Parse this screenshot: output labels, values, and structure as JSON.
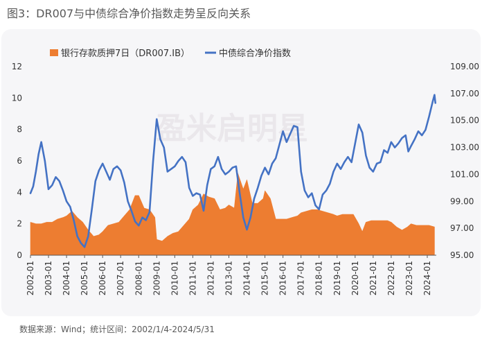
{
  "figure_title": "图3：DR007与中债综合净价指数走势呈反向关系",
  "source_note": "数据来源：Wind；统计区间：2002/1/4-2024/5/31",
  "watermark": "盈米启明星",
  "colors": {
    "bar_series": "#ED7D31",
    "line_series": "#4472C4"
  },
  "chart_data": {
    "type": "area+line",
    "x_tick_labels": [
      "2002-01",
      "2003-01",
      "2004-01",
      "2005-01",
      "2006-01",
      "2007-01",
      "2008-01",
      "2009-01",
      "2010-01",
      "2011-01",
      "2012-01",
      "2013-01",
      "2014-01",
      "2015-01",
      "2016-01",
      "2017-01",
      "2018-01",
      "2019-01",
      "2020-01",
      "2021-01",
      "2022-01",
      "2023-01",
      "2024-01"
    ],
    "y_left_ticks": [
      0,
      2,
      4,
      6,
      8,
      10,
      12
    ],
    "y_left_labels": [
      "0",
      "2",
      "4",
      "6",
      "8",
      "10",
      "12"
    ],
    "y_left_range": [
      0,
      12
    ],
    "y_right_ticks": [
      95,
      97,
      99,
      101,
      103,
      105,
      107,
      109
    ],
    "y_right_labels": [
      "95.00",
      "97.00",
      "99.00",
      "101.00",
      "103.00",
      "105.00",
      "107.00",
      "109.00"
    ],
    "y_right_range": [
      95,
      109
    ],
    "x_range": [
      2002.0,
      2024.5
    ],
    "legend_position": "top-left",
    "series": [
      {
        "name": "银行存款质押7日（DR007.IB）",
        "axis": "left",
        "style": "filled-area",
        "points": [
          [
            2002.0,
            2.1
          ],
          [
            2002.3,
            2.0
          ],
          [
            2002.6,
            2.0
          ],
          [
            2002.9,
            2.1
          ],
          [
            2003.2,
            2.1
          ],
          [
            2003.5,
            2.3
          ],
          [
            2003.8,
            2.4
          ],
          [
            2004.0,
            2.5
          ],
          [
            2004.3,
            2.8
          ],
          [
            2004.6,
            2.4
          ],
          [
            2004.9,
            2.1
          ],
          [
            2005.2,
            1.6
          ],
          [
            2005.5,
            1.2
          ],
          [
            2005.8,
            1.3
          ],
          [
            2006.0,
            1.5
          ],
          [
            2006.3,
            1.9
          ],
          [
            2006.6,
            2.0
          ],
          [
            2006.9,
            2.1
          ],
          [
            2007.2,
            2.5
          ],
          [
            2007.5,
            2.9
          ],
          [
            2007.8,
            3.8
          ],
          [
            2008.0,
            3.8
          ],
          [
            2008.3,
            3.0
          ],
          [
            2008.6,
            2.9
          ],
          [
            2008.9,
            2.4
          ],
          [
            2009.0,
            1.0
          ],
          [
            2009.3,
            0.9
          ],
          [
            2009.6,
            1.2
          ],
          [
            2009.9,
            1.4
          ],
          [
            2010.2,
            1.5
          ],
          [
            2010.5,
            1.9
          ],
          [
            2010.8,
            2.3
          ],
          [
            2011.0,
            2.9
          ],
          [
            2011.3,
            3.2
          ],
          [
            2011.6,
            3.9
          ],
          [
            2011.9,
            3.7
          ],
          [
            2012.2,
            3.6
          ],
          [
            2012.5,
            2.9
          ],
          [
            2012.8,
            3.0
          ],
          [
            2013.0,
            3.2
          ],
          [
            2013.3,
            3.0
          ],
          [
            2013.5,
            5.2
          ],
          [
            2013.8,
            4.2
          ],
          [
            2014.0,
            4.8
          ],
          [
            2014.3,
            3.3
          ],
          [
            2014.6,
            3.3
          ],
          [
            2014.9,
            3.6
          ],
          [
            2015.0,
            4.1
          ],
          [
            2015.3,
            3.6
          ],
          [
            2015.6,
            2.3
          ],
          [
            2015.9,
            2.3
          ],
          [
            2016.2,
            2.3
          ],
          [
            2016.5,
            2.4
          ],
          [
            2016.8,
            2.5
          ],
          [
            2017.0,
            2.7
          ],
          [
            2017.3,
            2.8
          ],
          [
            2017.6,
            2.9
          ],
          [
            2017.9,
            2.9
          ],
          [
            2018.2,
            2.8
          ],
          [
            2018.5,
            2.7
          ],
          [
            2018.8,
            2.6
          ],
          [
            2019.0,
            2.5
          ],
          [
            2019.3,
            2.6
          ],
          [
            2019.6,
            2.6
          ],
          [
            2019.9,
            2.6
          ],
          [
            2020.2,
            2.0
          ],
          [
            2020.4,
            1.5
          ],
          [
            2020.6,
            2.1
          ],
          [
            2020.9,
            2.2
          ],
          [
            2021.2,
            2.2
          ],
          [
            2021.5,
            2.2
          ],
          [
            2021.8,
            2.2
          ],
          [
            2022.0,
            2.1
          ],
          [
            2022.3,
            1.8
          ],
          [
            2022.6,
            1.6
          ],
          [
            2022.9,
            1.8
          ],
          [
            2023.1,
            2.0
          ],
          [
            2023.4,
            1.9
          ],
          [
            2023.7,
            1.9
          ],
          [
            2023.9,
            1.9
          ],
          [
            2024.1,
            1.9
          ],
          [
            2024.4,
            1.8
          ]
        ]
      },
      {
        "name": "中债综合净价指数",
        "axis": "right",
        "style": "line",
        "points": [
          [
            2002.0,
            99.6
          ],
          [
            2002.15,
            100.1
          ],
          [
            2002.3,
            101.2
          ],
          [
            2002.45,
            102.5
          ],
          [
            2002.6,
            103.4
          ],
          [
            2002.8,
            102.0
          ],
          [
            2003.0,
            99.9
          ],
          [
            2003.2,
            100.2
          ],
          [
            2003.4,
            100.8
          ],
          [
            2003.6,
            100.5
          ],
          [
            2003.8,
            99.8
          ],
          [
            2004.0,
            99.0
          ],
          [
            2004.2,
            98.6
          ],
          [
            2004.4,
            97.6
          ],
          [
            2004.6,
            96.4
          ],
          [
            2004.8,
            95.9
          ],
          [
            2005.0,
            95.6
          ],
          [
            2005.2,
            96.4
          ],
          [
            2005.4,
            98.4
          ],
          [
            2005.6,
            100.5
          ],
          [
            2005.8,
            101.3
          ],
          [
            2006.0,
            101.8
          ],
          [
            2006.2,
            101.2
          ],
          [
            2006.4,
            100.6
          ],
          [
            2006.6,
            101.4
          ],
          [
            2006.8,
            101.6
          ],
          [
            2007.0,
            101.3
          ],
          [
            2007.2,
            100.4
          ],
          [
            2007.4,
            99.0
          ],
          [
            2007.6,
            98.3
          ],
          [
            2007.8,
            97.5
          ],
          [
            2008.0,
            97.2
          ],
          [
            2008.2,
            97.8
          ],
          [
            2008.4,
            97.6
          ],
          [
            2008.6,
            98.2
          ],
          [
            2008.8,
            102.0
          ],
          [
            2009.0,
            105.1
          ],
          [
            2009.2,
            103.6
          ],
          [
            2009.4,
            103.0
          ],
          [
            2009.6,
            101.2
          ],
          [
            2009.8,
            101.4
          ],
          [
            2010.0,
            101.6
          ],
          [
            2010.2,
            102.0
          ],
          [
            2010.4,
            102.3
          ],
          [
            2010.6,
            101.9
          ],
          [
            2010.8,
            100.0
          ],
          [
            2011.0,
            99.4
          ],
          [
            2011.2,
            99.6
          ],
          [
            2011.4,
            99.5
          ],
          [
            2011.6,
            98.3
          ],
          [
            2011.8,
            100.2
          ],
          [
            2012.0,
            101.4
          ],
          [
            2012.2,
            101.6
          ],
          [
            2012.4,
            102.3
          ],
          [
            2012.6,
            101.4
          ],
          [
            2012.8,
            101.0
          ],
          [
            2013.0,
            101.2
          ],
          [
            2013.2,
            101.5
          ],
          [
            2013.4,
            101.6
          ],
          [
            2013.6,
            99.6
          ],
          [
            2013.8,
            97.8
          ],
          [
            2014.0,
            96.9
          ],
          [
            2014.2,
            97.8
          ],
          [
            2014.4,
            99.2
          ],
          [
            2014.6,
            100.0
          ],
          [
            2014.8,
            100.9
          ],
          [
            2015.0,
            101.5
          ],
          [
            2015.2,
            101.0
          ],
          [
            2015.4,
            101.8
          ],
          [
            2015.6,
            102.2
          ],
          [
            2015.8,
            103.2
          ],
          [
            2016.0,
            104.2
          ],
          [
            2016.2,
            103.4
          ],
          [
            2016.4,
            104.0
          ],
          [
            2016.6,
            104.6
          ],
          [
            2016.8,
            104.5
          ],
          [
            2017.0,
            101.2
          ],
          [
            2017.2,
            99.8
          ],
          [
            2017.4,
            99.3
          ],
          [
            2017.6,
            99.6
          ],
          [
            2017.8,
            98.7
          ],
          [
            2018.0,
            98.4
          ],
          [
            2018.2,
            99.5
          ],
          [
            2018.4,
            99.8
          ],
          [
            2018.6,
            100.3
          ],
          [
            2018.8,
            101.2
          ],
          [
            2019.0,
            101.8
          ],
          [
            2019.2,
            101.4
          ],
          [
            2019.4,
            101.9
          ],
          [
            2019.6,
            102.3
          ],
          [
            2019.8,
            101.9
          ],
          [
            2020.0,
            103.3
          ],
          [
            2020.2,
            104.7
          ],
          [
            2020.4,
            104.1
          ],
          [
            2020.6,
            102.4
          ],
          [
            2020.8,
            101.5
          ],
          [
            2021.0,
            101.2
          ],
          [
            2021.2,
            101.8
          ],
          [
            2021.4,
            101.9
          ],
          [
            2021.6,
            102.8
          ],
          [
            2021.8,
            102.6
          ],
          [
            2022.0,
            103.4
          ],
          [
            2022.2,
            103.0
          ],
          [
            2022.4,
            103.3
          ],
          [
            2022.6,
            103.7
          ],
          [
            2022.8,
            103.9
          ],
          [
            2022.95,
            102.7
          ],
          [
            2023.1,
            103.1
          ],
          [
            2023.3,
            103.6
          ],
          [
            2023.5,
            104.2
          ],
          [
            2023.7,
            103.9
          ],
          [
            2023.9,
            104.3
          ],
          [
            2024.1,
            105.3
          ],
          [
            2024.3,
            106.4
          ],
          [
            2024.4,
            106.9
          ],
          [
            2024.45,
            106.3
          ]
        ]
      }
    ]
  }
}
